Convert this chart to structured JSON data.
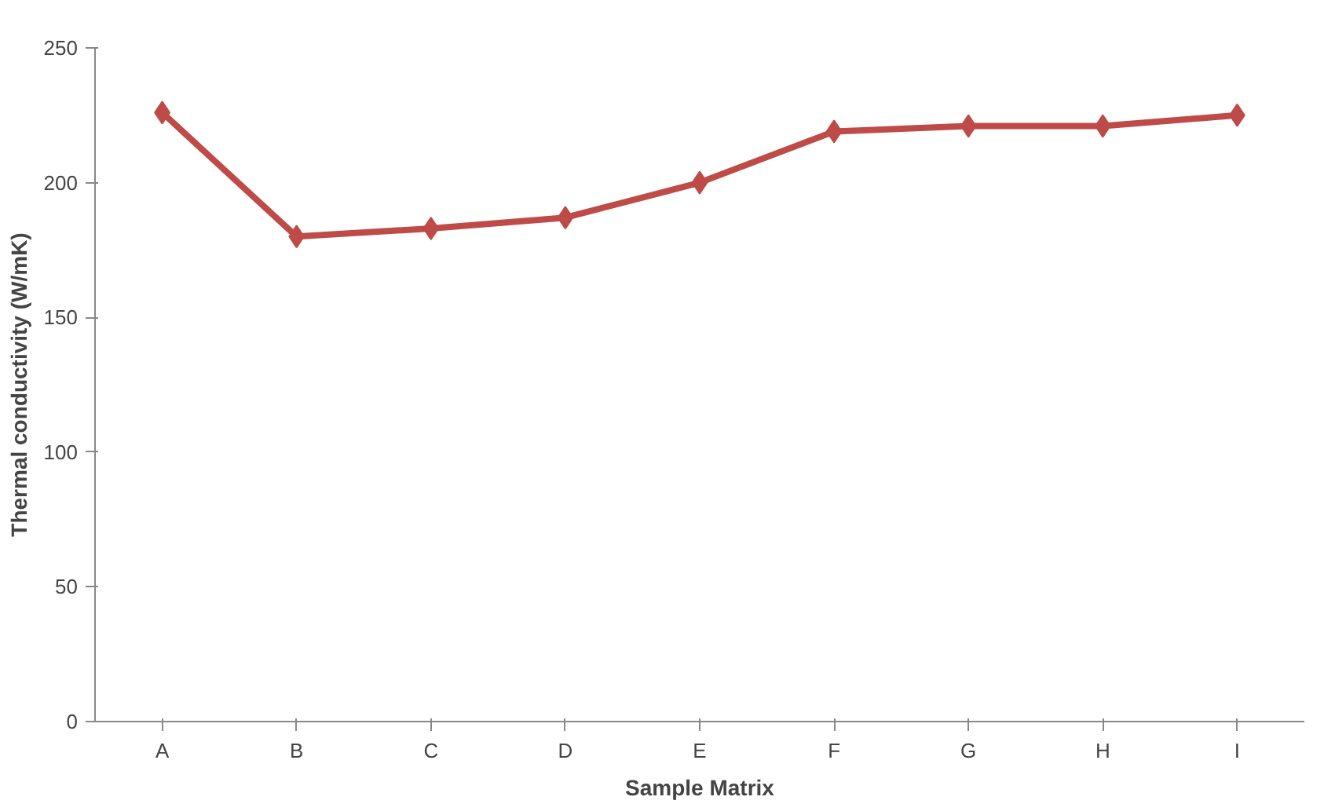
{
  "chart_data": {
    "type": "line",
    "xlabel": "Sample Matrix",
    "ylabel": "Thermal conductivity (W/mK)",
    "categories": [
      "A",
      "B",
      "C",
      "D",
      "E",
      "F",
      "G",
      "H",
      "I"
    ],
    "series": [
      {
        "color": "#be4b48",
        "values": [
          226,
          180,
          183,
          187,
          200,
          219,
          221,
          221,
          225
        ]
      }
    ],
    "ylim": [
      0,
      250
    ],
    "yticks": [
      0,
      50,
      100,
      150,
      200,
      250
    ],
    "grid": false,
    "marker": "diamond",
    "line_style": "solid"
  }
}
